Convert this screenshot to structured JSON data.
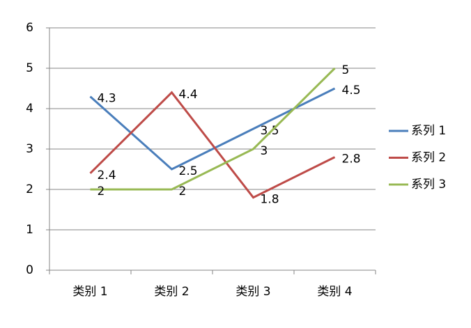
{
  "chart_data": {
    "type": "line",
    "categories": [
      "类别 1",
      "类别 2",
      "类别 3",
      "类别 4"
    ],
    "series": [
      {
        "name": "系列 1",
        "color": "#4a7ebb",
        "values": [
          4.3,
          2.5,
          3.5,
          4.5
        ]
      },
      {
        "name": "系列 2",
        "color": "#be4b48",
        "values": [
          2.4,
          4.4,
          1.8,
          2.8
        ]
      },
      {
        "name": "系列 3",
        "color": "#98b954",
        "values": [
          2,
          2,
          3,
          5
        ]
      }
    ],
    "ylim": [
      0,
      6
    ],
    "yticks": [
      0,
      1,
      2,
      3,
      4,
      5,
      6
    ],
    "grid": true,
    "legend": "right",
    "data_labels": true
  }
}
